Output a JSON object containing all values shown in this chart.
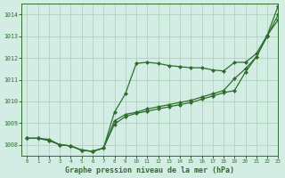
{
  "title": "Graphe pression niveau de la mer (hPa)",
  "background_color": "#d4ede4",
  "line_color": "#2d6e2d",
  "xlim": [
    -0.5,
    23
  ],
  "ylim": [
    1007.5,
    1014.5
  ],
  "yticks": [
    1008,
    1009,
    1010,
    1011,
    1012,
    1013,
    1014
  ],
  "xticks": [
    0,
    1,
    2,
    3,
    4,
    5,
    6,
    7,
    8,
    9,
    10,
    11,
    12,
    13,
    14,
    15,
    16,
    17,
    18,
    19,
    20,
    21,
    22,
    23
  ],
  "series": [
    {
      "x": [
        0,
        1,
        2,
        3,
        4,
        5,
        6,
        7,
        8,
        9,
        10,
        11,
        12,
        13,
        14,
        15,
        16,
        17,
        18,
        19,
        20,
        21,
        22,
        23
      ],
      "y": [
        1008.3,
        1008.3,
        1008.2,
        1008.0,
        1007.95,
        1007.75,
        1007.7,
        1007.85,
        1009.5,
        1010.35,
        1011.75,
        1011.8,
        1011.75,
        1011.65,
        1011.6,
        1011.55,
        1011.55,
        1011.45,
        1011.4,
        1011.8,
        1011.8,
        1012.2,
        1013.05,
        1013.75
      ]
    },
    {
      "x": [
        0,
        1,
        2,
        3,
        4,
        5,
        6,
        7,
        8,
        9,
        10,
        11,
        12,
        13,
        14,
        15,
        16,
        17,
        18,
        19,
        20,
        21,
        22,
        23
      ],
      "y": [
        1008.3,
        1008.3,
        1008.25,
        1008.0,
        1007.95,
        1007.75,
        1007.7,
        1007.85,
        1009.1,
        1009.4,
        1009.5,
        1009.65,
        1009.75,
        1009.85,
        1009.95,
        1010.05,
        1010.2,
        1010.35,
        1010.5,
        1011.05,
        1011.5,
        1012.05,
        1013.05,
        1014.4
      ]
    },
    {
      "x": [
        0,
        1,
        2,
        3,
        4,
        5,
        6,
        7,
        8,
        9,
        10,
        11,
        12,
        13,
        14,
        15,
        16,
        17,
        18,
        19,
        20,
        21,
        22,
        23
      ],
      "y": [
        1008.3,
        1008.3,
        1008.2,
        1008.0,
        1007.95,
        1007.75,
        1007.7,
        1007.85,
        1008.95,
        1009.3,
        1009.45,
        1009.55,
        1009.65,
        1009.75,
        1009.85,
        1009.95,
        1010.1,
        1010.25,
        1010.4,
        1010.5,
        1011.35,
        1012.05,
        1013.0,
        1014.0
      ]
    }
  ]
}
